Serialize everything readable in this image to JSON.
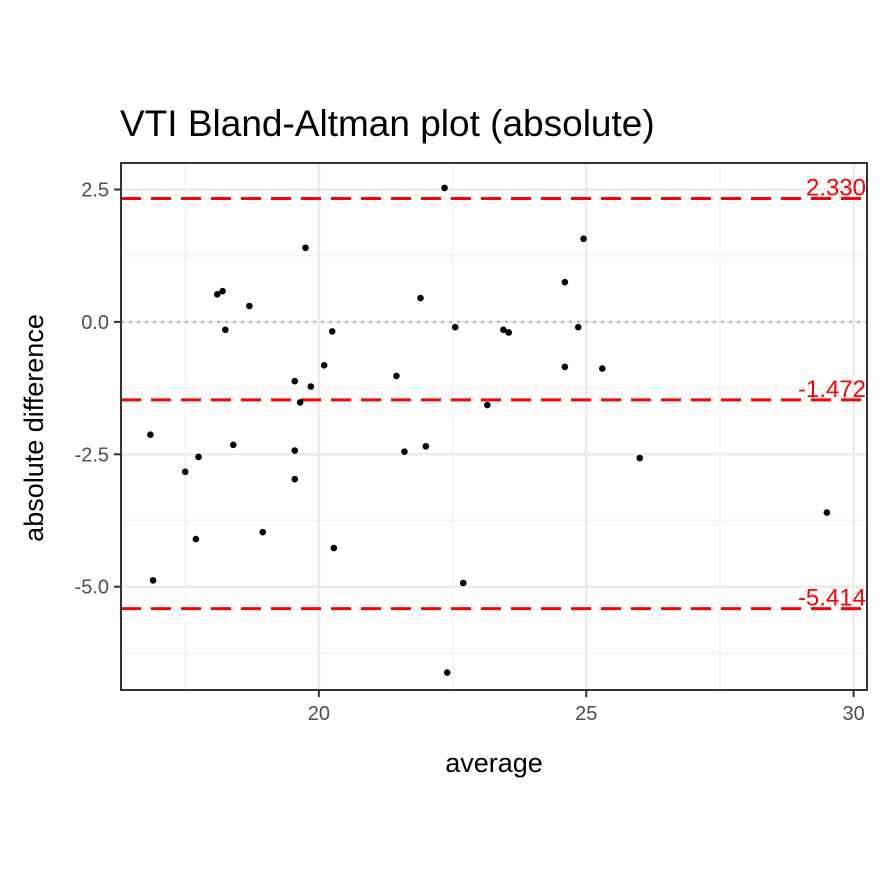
{
  "chart_data": {
    "type": "scatter",
    "title": "VTI   Bland-Altman plot (absolute)",
    "xlabel": "average",
    "ylabel": "absolute difference",
    "xlim": [
      16.3,
      30.25
    ],
    "ylim": [
      -6.95,
      3.0
    ],
    "x_ticks": [
      20,
      25,
      30
    ],
    "x_tick_labels": [
      "20",
      "25",
      "30"
    ],
    "y_ticks": [
      2.5,
      0.0,
      -2.5,
      -5.0
    ],
    "y_tick_labels": [
      "2.5",
      "0.0",
      "-2.5",
      "-5.0"
    ],
    "x_minor_ticks": [
      17.5,
      22.5,
      27.5
    ],
    "y_minor_ticks": [
      1.25,
      -1.25,
      -3.75,
      -6.25
    ],
    "grid": true,
    "reference_lines": [
      {
        "value": 2.33,
        "label": "2.330",
        "style": "dashed",
        "color": "#ff0000"
      },
      {
        "value": -1.472,
        "label": "-1.472",
        "style": "dashed",
        "color": "#ff0000"
      },
      {
        "value": -5.414,
        "label": "-5.414",
        "style": "dashed",
        "color": "#ff0000"
      },
      {
        "value": 0.0,
        "label": "",
        "style": "dotted",
        "color": "#bebebe"
      }
    ],
    "points": [
      {
        "x": 16.85,
        "y": -2.13
      },
      {
        "x": 16.9,
        "y": -4.88
      },
      {
        "x": 17.5,
        "y": -2.83
      },
      {
        "x": 17.7,
        "y": -4.1
      },
      {
        "x": 17.75,
        "y": -2.55
      },
      {
        "x": 18.1,
        "y": 0.52
      },
      {
        "x": 18.2,
        "y": 0.58
      },
      {
        "x": 18.25,
        "y": -0.15
      },
      {
        "x": 18.4,
        "y": -2.32
      },
      {
        "x": 18.7,
        "y": 0.3
      },
      {
        "x": 18.95,
        "y": -3.97
      },
      {
        "x": 19.55,
        "y": -1.12
      },
      {
        "x": 19.55,
        "y": -2.43
      },
      {
        "x": 19.55,
        "y": -2.97
      },
      {
        "x": 19.65,
        "y": -1.52
      },
      {
        "x": 19.75,
        "y": 1.4
      },
      {
        "x": 19.85,
        "y": -1.22
      },
      {
        "x": 20.1,
        "y": -0.82
      },
      {
        "x": 20.25,
        "y": -0.18
      },
      {
        "x": 20.28,
        "y": -4.27
      },
      {
        "x": 21.45,
        "y": -1.02
      },
      {
        "x": 21.6,
        "y": -2.45
      },
      {
        "x": 21.9,
        "y": 0.45
      },
      {
        "x": 22.0,
        "y": -2.35
      },
      {
        "x": 22.35,
        "y": 2.53
      },
      {
        "x": 22.4,
        "y": -6.62
      },
      {
        "x": 22.55,
        "y": -0.1
      },
      {
        "x": 22.7,
        "y": -4.93
      },
      {
        "x": 23.15,
        "y": -1.57
      },
      {
        "x": 23.45,
        "y": -0.15
      },
      {
        "x": 23.55,
        "y": -0.2
      },
      {
        "x": 24.6,
        "y": 0.75
      },
      {
        "x": 24.6,
        "y": -0.85
      },
      {
        "x": 24.85,
        "y": -0.1
      },
      {
        "x": 24.95,
        "y": 1.57
      },
      {
        "x": 25.3,
        "y": -0.88
      },
      {
        "x": 26.0,
        "y": -2.57
      },
      {
        "x": 29.5,
        "y": -3.6
      }
    ]
  },
  "colors": {
    "points": "#000000",
    "limit_lines": "#ff0000",
    "zero_line": "#bebebe",
    "grid_major": "#ebebeb",
    "grid_minor": "#f2f2f2",
    "panel_border": "#333333"
  }
}
